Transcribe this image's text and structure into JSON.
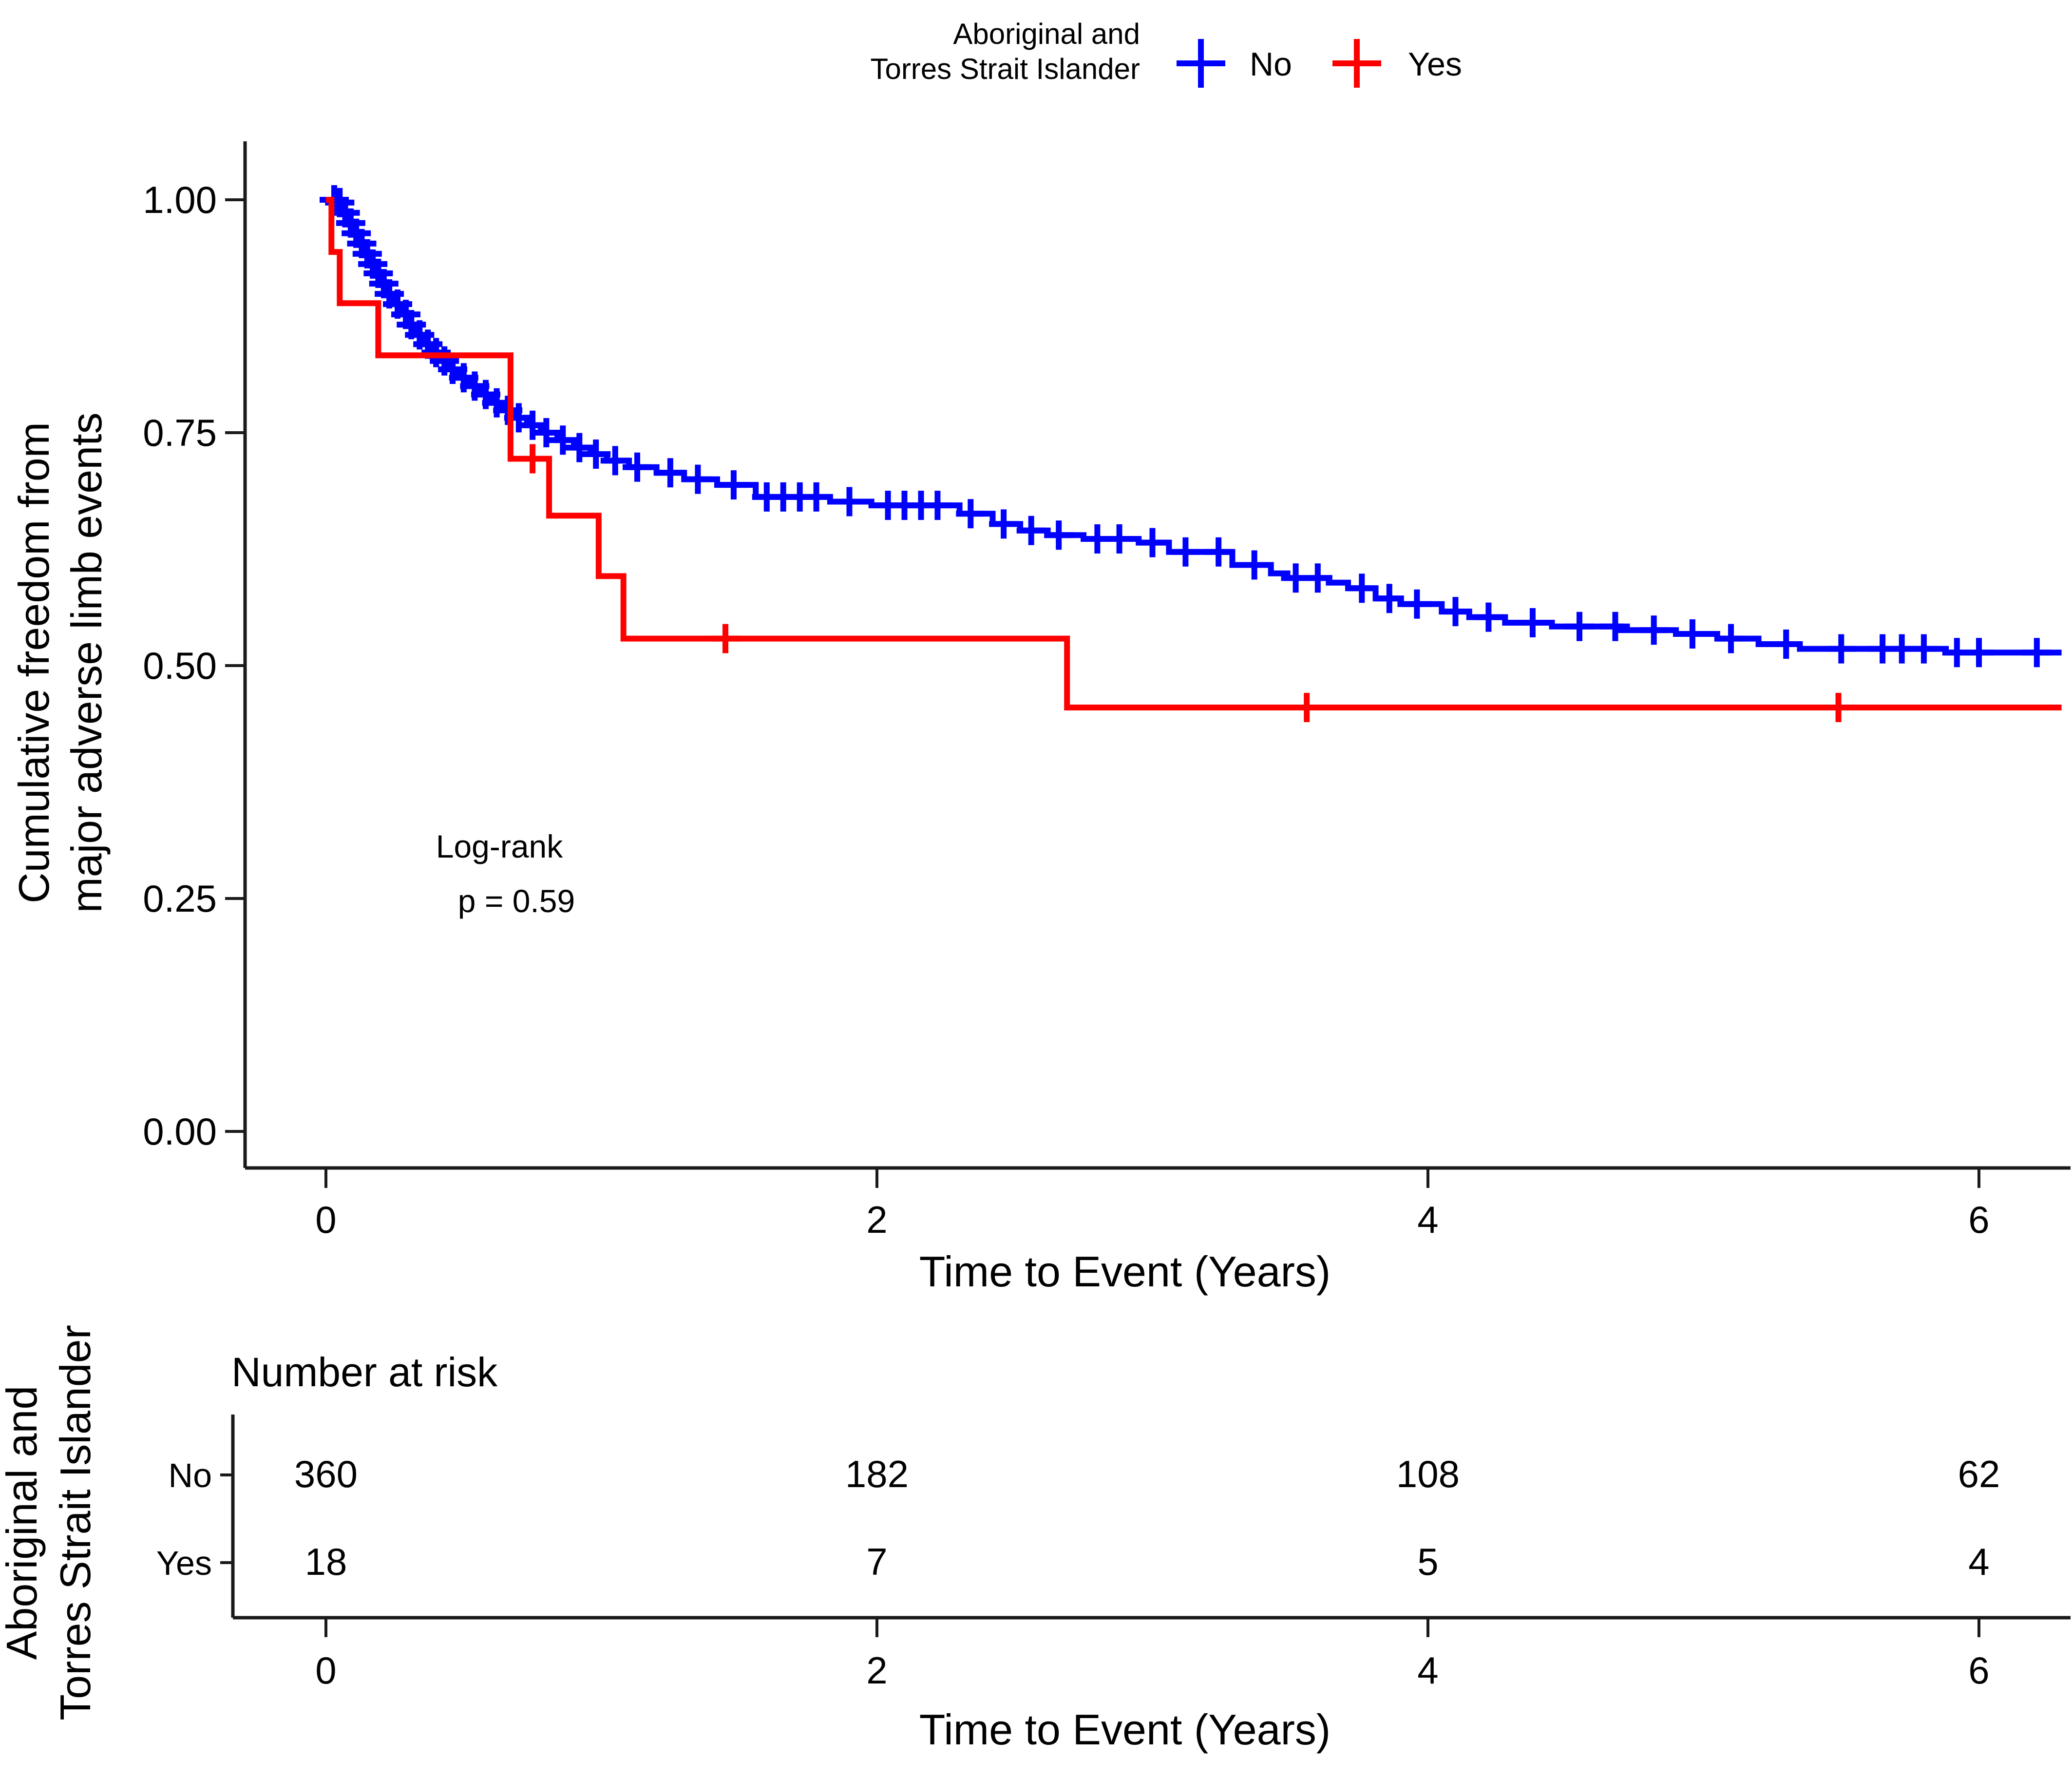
{
  "legend": {
    "title_line1": "Aboriginal and",
    "title_line2": "Torres Strait Islander",
    "items": [
      {
        "label": "No",
        "color": "#0000FF"
      },
      {
        "label": "Yes",
        "color": "#FF0000"
      }
    ]
  },
  "y_axis": {
    "title_line1": "Cumulative freedom from",
    "title_line2": "major adverse limb events",
    "ticks": [
      "1.00",
      "0.75",
      "0.50",
      "0.25",
      "0.00"
    ]
  },
  "x_axis": {
    "title": "Time to Event (Years)",
    "ticks": [
      "0",
      "2",
      "4",
      "6"
    ]
  },
  "annotation": {
    "line1": "Log-rank",
    "line2": "p = 0.59"
  },
  "risk_table": {
    "title": "Number at risk",
    "axis_label_line1": "Aboriginal and",
    "axis_label_line2": "Torres Strait Islander",
    "x_ticks": [
      "0",
      "2",
      "4",
      "6"
    ],
    "x_axis_title": "Time to Event (Years)",
    "rows": [
      {
        "label": "No",
        "color": "#0000FF",
        "values": [
          "360",
          "182",
          "108",
          "62"
        ]
      },
      {
        "label": "Yes",
        "color": "#FF0000",
        "values": [
          "18",
          "7",
          "5",
          "4"
        ]
      }
    ]
  },
  "chart_data": {
    "type": "line",
    "subtype": "kaplan-meier-step",
    "title": "",
    "xlabel": "Time to Event (Years)",
    "ylabel": "Cumulative freedom from major adverse limb events",
    "xlim": [
      0,
      6.34
    ],
    "ylim": [
      0,
      1
    ],
    "x_ticks": [
      0,
      2,
      4,
      6
    ],
    "y_ticks": [
      1.0,
      0.75,
      0.5,
      0.25,
      0.0
    ],
    "grid": false,
    "legend_position": "top",
    "legend_title": "Aboriginal and Torres Strait Islander",
    "log_rank_p": "0.59",
    "series": [
      {
        "name": "No",
        "color": "#0000FF",
        "steps": [
          [
            0,
            1.0
          ],
          [
            0.04,
            0.997
          ],
          [
            0.06,
            0.986
          ],
          [
            0.08,
            0.975
          ],
          [
            0.1,
            0.964
          ],
          [
            0.12,
            0.953
          ],
          [
            0.14,
            0.942
          ],
          [
            0.16,
            0.931
          ],
          [
            0.18,
            0.921
          ],
          [
            0.2,
            0.91
          ],
          [
            0.22,
            0.899
          ],
          [
            0.25,
            0.888
          ],
          [
            0.28,
            0.877
          ],
          [
            0.3,
            0.866
          ],
          [
            0.33,
            0.855
          ],
          [
            0.36,
            0.845
          ],
          [
            0.39,
            0.836
          ],
          [
            0.42,
            0.827
          ],
          [
            0.45,
            0.818
          ],
          [
            0.48,
            0.809
          ],
          [
            0.52,
            0.8
          ],
          [
            0.56,
            0.791
          ],
          [
            0.6,
            0.782
          ],
          [
            0.64,
            0.774
          ],
          [
            0.68,
            0.766
          ],
          [
            0.73,
            0.758
          ],
          [
            0.78,
            0.75
          ],
          [
            0.84,
            0.742
          ],
          [
            0.9,
            0.734
          ],
          [
            0.96,
            0.727
          ],
          [
            1.02,
            0.72
          ],
          [
            1.1,
            0.713
          ],
          [
            1.2,
            0.707
          ],
          [
            1.3,
            0.7
          ],
          [
            1.42,
            0.694
          ],
          [
            1.56,
            0.681
          ],
          [
            1.83,
            0.676
          ],
          [
            1.98,
            0.672
          ],
          [
            2.3,
            0.663
          ],
          [
            2.42,
            0.652
          ],
          [
            2.52,
            0.645
          ],
          [
            2.62,
            0.64
          ],
          [
            2.75,
            0.636
          ],
          [
            2.95,
            0.632
          ],
          [
            3.06,
            0.622
          ],
          [
            3.29,
            0.608
          ],
          [
            3.43,
            0.599
          ],
          [
            3.49,
            0.594
          ],
          [
            3.64,
            0.589
          ],
          [
            3.71,
            0.583
          ],
          [
            3.81,
            0.572
          ],
          [
            3.9,
            0.566
          ],
          [
            4.05,
            0.558
          ],
          [
            4.15,
            0.552
          ],
          [
            4.28,
            0.546
          ],
          [
            4.45,
            0.542
          ],
          [
            4.7,
            0.538
          ],
          [
            4.9,
            0.534
          ],
          [
            5.05,
            0.529
          ],
          [
            5.2,
            0.523
          ],
          [
            5.35,
            0.518
          ],
          [
            5.88,
            0.514
          ],
          [
            6.3,
            0.514
          ]
        ],
        "censor_times": [
          0.03,
          0.05,
          0.07,
          0.09,
          0.11,
          0.13,
          0.15,
          0.17,
          0.19,
          0.21,
          0.23,
          0.26,
          0.29,
          0.31,
          0.34,
          0.37,
          0.4,
          0.43,
          0.46,
          0.5,
          0.54,
          0.58,
          0.62,
          0.66,
          0.7,
          0.75,
          0.8,
          0.86,
          0.92,
          0.98,
          1.05,
          1.13,
          1.25,
          1.35,
          1.48,
          1.6,
          1.66,
          1.72,
          1.78,
          1.9,
          2.04,
          2.1,
          2.16,
          2.22,
          2.34,
          2.46,
          2.56,
          2.66,
          2.8,
          2.88,
          3.0,
          3.12,
          3.24,
          3.37,
          3.52,
          3.6,
          3.76,
          3.86,
          3.96,
          4.1,
          4.22,
          4.38,
          4.55,
          4.68,
          4.82,
          4.96,
          5.1,
          5.3,
          5.5,
          5.65,
          5.72,
          5.8,
          5.92,
          6.0,
          6.21
        ]
      },
      {
        "name": "Yes",
        "color": "#FF0000",
        "steps": [
          [
            0,
            1.0
          ],
          [
            0.02,
            0.944
          ],
          [
            0.05,
            0.889
          ],
          [
            0.19,
            0.833
          ],
          [
            0.67,
            0.722
          ],
          [
            0.81,
            0.661
          ],
          [
            0.99,
            0.596
          ],
          [
            1.08,
            0.529
          ],
          [
            2.69,
            0.455
          ],
          [
            6.3,
            0.455
          ]
        ],
        "censor_times": [
          0.75,
          1.45,
          3.56,
          5.49
        ]
      }
    ],
    "number_at_risk": {
      "times": [
        0,
        2,
        4,
        6
      ],
      "No": [
        360,
        182,
        108,
        62
      ],
      "Yes": [
        18,
        7,
        5,
        4
      ]
    }
  }
}
